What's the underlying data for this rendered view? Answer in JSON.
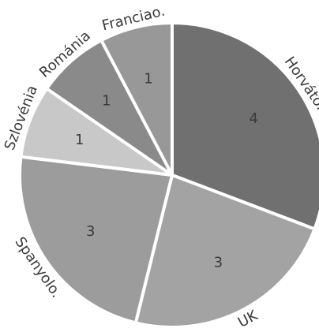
{
  "chart_data": {
    "type": "pie",
    "title": "",
    "categories": [
      "Horváto.",
      "UK",
      "Spanyolo.",
      "Szlovénia",
      "Románia",
      "Franciao."
    ],
    "values": [
      4,
      3,
      3,
      1,
      1,
      1
    ],
    "colors": [
      "#707070",
      "#a3a3a3",
      "#9c9c9c",
      "#c8c8c8",
      "#8a8a8a",
      "#989898"
    ],
    "labels": {
      "value_label_color": "#3a3a3a",
      "category_label_color": "#444444"
    },
    "legend": "none"
  }
}
